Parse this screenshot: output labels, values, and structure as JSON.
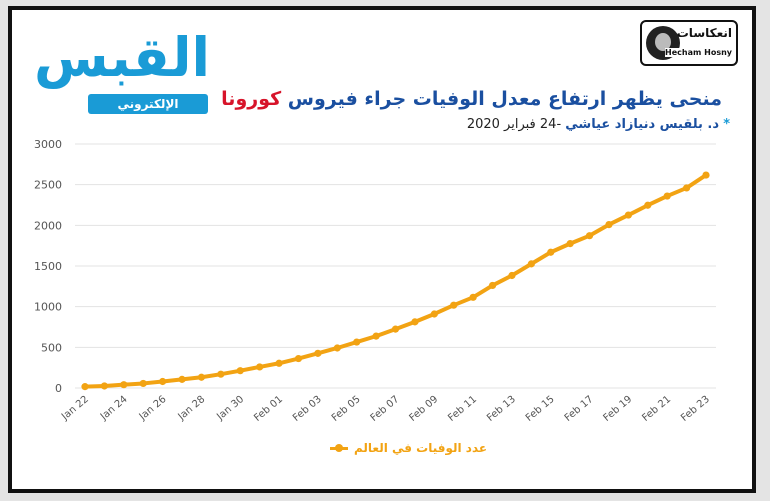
{
  "header": {
    "logo_text": "القبس",
    "logo_sub": "الإلكتروني",
    "badge_ar": "انعكاسات",
    "badge_en": "Hecham Hosny",
    "title_main": "منحى يظهر ارتفاع معدل الوفيات جراء فيروس ",
    "title_highlight": "كورونا",
    "subtitle_star": "*",
    "subtitle_author": "د. بلقيس دنيازاد عياشي",
    "subtitle_date": " -24 فبراير 2020"
  },
  "colors": {
    "line": "#f2a313",
    "title": "#1a4fa0",
    "highlight": "#d7142a",
    "logo": "#1a9bd6"
  },
  "chart_data": {
    "type": "line",
    "title": "منحى يظهر ارتفاع معدل الوفيات جراء فيروس كورونا",
    "xlabel": "",
    "ylabel": "",
    "ylim": [
      0,
      3000
    ],
    "yticks": [
      "0",
      "500",
      "1000",
      "1500",
      "2000",
      "2500",
      "3000"
    ],
    "ytick_values": [
      0,
      500,
      1000,
      1500,
      2000,
      2500,
      3000
    ],
    "x": [
      "Jan 22",
      "Jan 23",
      "Jan 24",
      "Jan 25",
      "Jan 26",
      "Jan 27",
      "Jan 28",
      "Jan 29",
      "Jan 30",
      "Jan 31",
      "Feb 01",
      "Feb 02",
      "Feb 03",
      "Feb 04",
      "Feb 05",
      "Feb 06",
      "Feb 07",
      "Feb 08",
      "Feb 09",
      "Feb 10",
      "Feb 11",
      "Feb 12",
      "Feb 13",
      "Feb 14",
      "Feb 15",
      "Feb 16",
      "Feb 17",
      "Feb 18",
      "Feb 19",
      "Feb 20",
      "Feb 21",
      "Feb 22",
      "Feb 23"
    ],
    "xtick_labels": [
      "Jan 22",
      "Jan 24",
      "Jan 26",
      "Jan 28",
      "Jan 30",
      "Feb 01",
      "Feb 03",
      "Feb 05",
      "Feb 07",
      "Feb 09",
      "Feb 11",
      "Feb 13",
      "Feb 15",
      "Feb 17",
      "Feb 19",
      "Feb 21",
      "Feb 23"
    ],
    "series": [
      {
        "name": "عدد الوفيات في العالم",
        "values": [
          17,
          25,
          41,
          56,
          80,
          106,
          132,
          170,
          213,
          259,
          304,
          362,
          426,
          492,
          565,
          638,
          724,
          813,
          910,
          1018,
          1115,
          1261,
          1383,
          1526,
          1669,
          1775,
          1873,
          2009,
          2126,
          2247,
          2360,
          2460,
          2618
        ]
      }
    ],
    "grid": true,
    "legend": "bottom-center"
  }
}
